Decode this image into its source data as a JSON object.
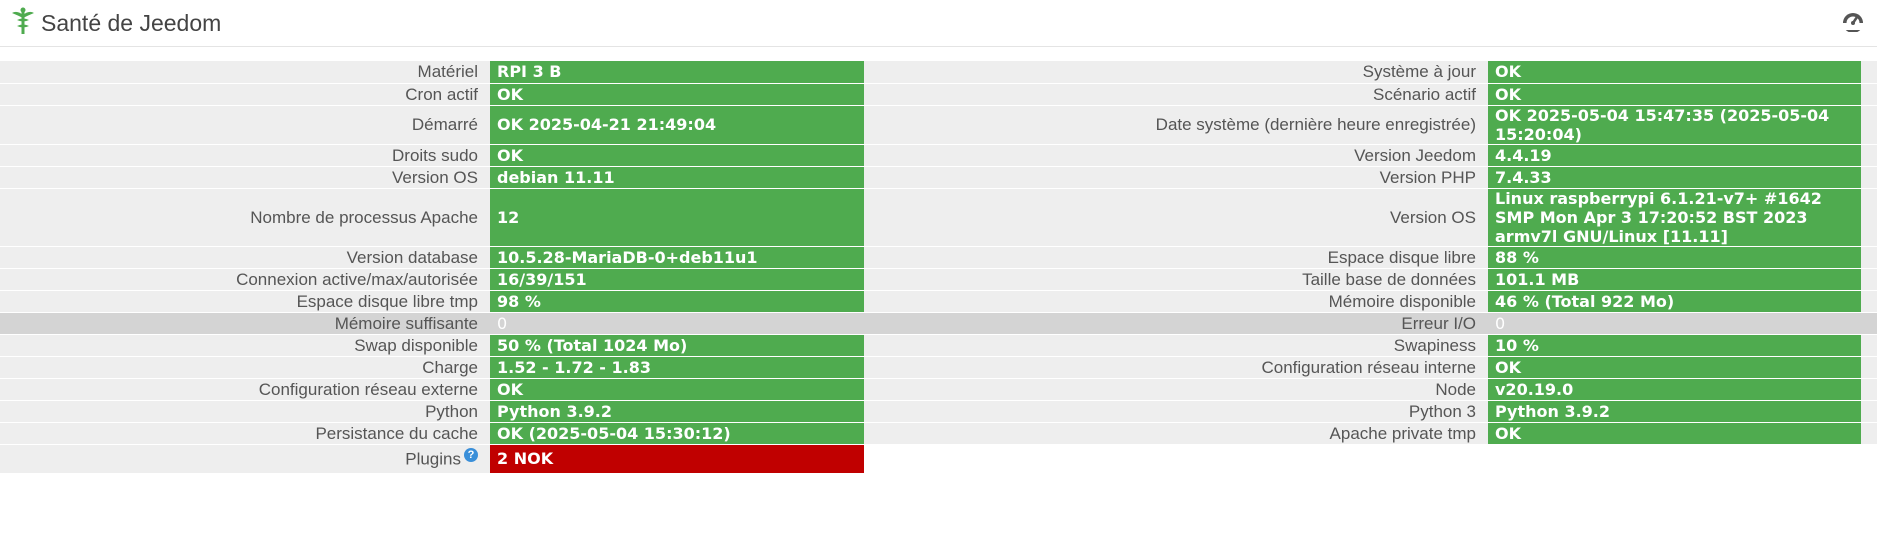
{
  "header": {
    "title": "Santé de Jeedom",
    "logo_icon": "jeedom-caduceus-icon",
    "tool_icon": "dashboard-gauge-icon"
  },
  "colors": {
    "ok": "#4fab4f",
    "nok": "#c00000",
    "neutral": "#d4d4d4",
    "label_bg": "#eeeeee"
  },
  "rows": [
    {
      "left_label": "Matériel",
      "left_value": "RPI 3 B",
      "left_status": "ok",
      "right_label": "Système à jour",
      "right_value": "OK",
      "right_status": "ok"
    },
    {
      "left_label": "Cron actif",
      "left_value": "OK",
      "left_status": "ok",
      "right_label": "Scénario actif",
      "right_value": "OK",
      "right_status": "ok"
    },
    {
      "left_label": "Démarré",
      "left_value": "OK 2025-04-21 21:49:04",
      "left_status": "ok",
      "right_label": "Date système (dernière heure enregistrée)",
      "right_value": "OK 2025-05-04 15:47:35 (2025-05-04 15:20:04)",
      "right_status": "ok"
    },
    {
      "left_label": "Droits sudo",
      "left_value": "OK",
      "left_status": "ok",
      "right_label": "Version Jeedom",
      "right_value": "4.4.19",
      "right_status": "ok"
    },
    {
      "left_label": "Version OS",
      "left_value": "debian 11.11",
      "left_status": "ok",
      "right_label": "Version PHP",
      "right_value": "7.4.33",
      "right_status": "ok"
    },
    {
      "left_label": "Nombre de processus Apache",
      "left_value": "12",
      "left_status": "ok",
      "right_label": "Version OS",
      "right_value": "Linux raspberrypi 6.1.21-v7+ #1642 SMP Mon Apr 3 17:20:52 BST 2023 armv7l GNU/Linux [11.11]",
      "right_status": "ok"
    },
    {
      "left_label": "Version database",
      "left_value": "10.5.28-MariaDB-0+deb11u1",
      "left_status": "ok",
      "right_label": "Espace disque libre",
      "right_value": "88 %",
      "right_status": "ok"
    },
    {
      "left_label": "Connexion active/max/autorisée",
      "left_value": "16/39/151",
      "left_status": "ok",
      "right_label": "Taille base de données",
      "right_value": "101.1 MB",
      "right_status": "ok"
    },
    {
      "left_label": "Espace disque libre tmp",
      "left_value": "98 %",
      "left_status": "ok",
      "right_label": "Mémoire disponible",
      "right_value": "46 % (Total 922 Mo)",
      "right_status": "ok"
    },
    {
      "left_label": "Mémoire suffisante",
      "left_value": "0",
      "left_status": "grey",
      "right_label": "Erreur I/O",
      "right_value": "0",
      "right_status": "grey"
    },
    {
      "left_label": "Swap disponible",
      "left_value": "50 % (Total 1024 Mo)",
      "left_status": "ok",
      "right_label": "Swapiness",
      "right_value": "10 %",
      "right_status": "ok"
    },
    {
      "left_label": "Charge",
      "left_value": "1.52 - 1.72 - 1.83",
      "left_status": "ok",
      "right_label": "Configuration réseau interne",
      "right_value": "OK",
      "right_status": "ok"
    },
    {
      "left_label": "Configuration réseau externe",
      "left_value": "OK",
      "left_status": "ok",
      "right_label": "Node",
      "right_value": "v20.19.0",
      "right_status": "ok"
    },
    {
      "left_label": "Python",
      "left_value": "Python 3.9.2",
      "left_status": "ok",
      "right_label": "Python 3",
      "right_value": "Python 3.9.2",
      "right_status": "ok"
    },
    {
      "left_label": "Persistance du cache",
      "left_value": "OK (2025-05-04 15:30:12)",
      "left_status": "ok",
      "right_label": "Apache private tmp",
      "right_value": "OK",
      "right_status": "ok"
    }
  ],
  "plugins_row": {
    "label": "Plugins",
    "help_icon": "question-circle-icon",
    "help_glyph": "?",
    "value": "2 NOK",
    "status": "nok"
  }
}
